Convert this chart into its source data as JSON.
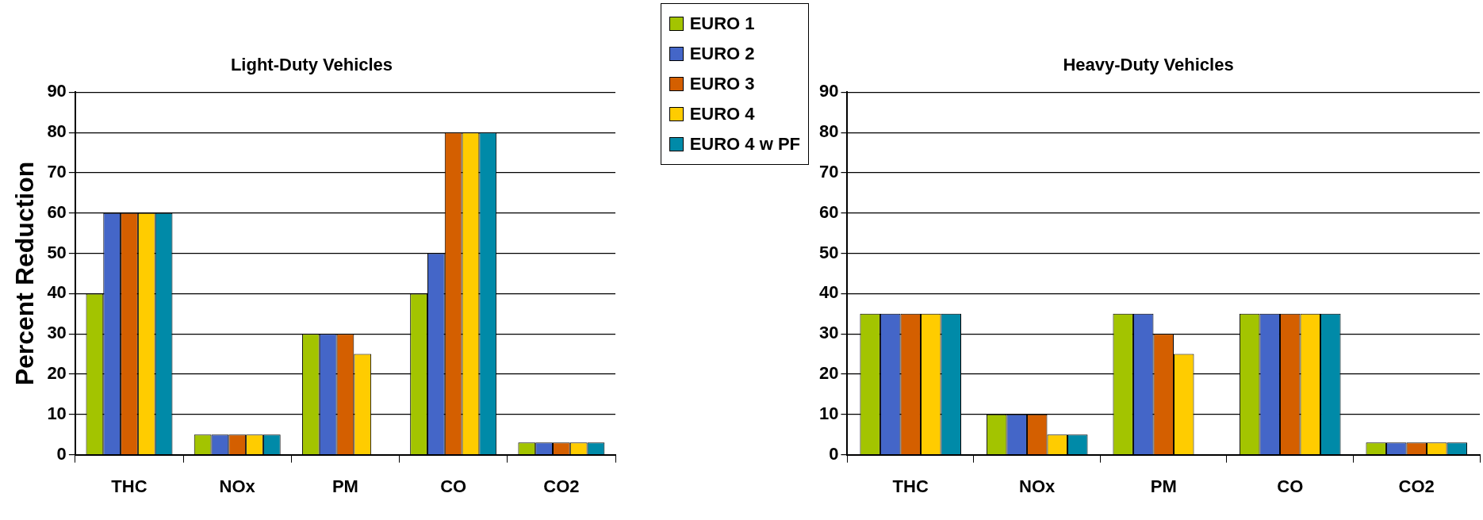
{
  "chart_data": [
    {
      "type": "bar",
      "title": "Light-Duty Vehicles",
      "ylabel": "Percent Reduction",
      "categories": [
        "THC",
        "NOx",
        "PM",
        "CO",
        "CO2"
      ],
      "series": [
        {
          "name": "EURO 1",
          "color": "#a3c400",
          "values": [
            40,
            5,
            30,
            40,
            3
          ]
        },
        {
          "name": "EURO 2",
          "color": "#4466c8",
          "values": [
            60,
            5,
            30,
            50,
            3
          ]
        },
        {
          "name": "EURO 3",
          "color": "#d45f00",
          "values": [
            60,
            5,
            30,
            80,
            3
          ]
        },
        {
          "name": "EURO 4",
          "color": "#ffcc00",
          "values": [
            60,
            5,
            25,
            80,
            3
          ]
        },
        {
          "name": "EURO 4 w PF",
          "color": "#008aa8",
          "values": [
            60,
            5,
            null,
            80,
            3
          ]
        }
      ],
      "ylim": [
        0,
        90
      ],
      "yticks": [
        0,
        10,
        20,
        30,
        40,
        50,
        60,
        70,
        80,
        90
      ],
      "grid": "y",
      "legend": "top right"
    },
    {
      "type": "bar",
      "title": "Heavy-Duty Vehicles",
      "categories": [
        "THC",
        "NOx",
        "PM",
        "CO",
        "CO2"
      ],
      "series": [
        {
          "color": "#a3c400",
          "values": [
            35,
            10,
            35,
            35,
            3
          ]
        },
        {
          "color": "#4466c8",
          "values": [
            35,
            10,
            35,
            35,
            3
          ]
        },
        {
          "color": "#d45f00",
          "values": [
            35,
            10,
            30,
            35,
            3
          ]
        },
        {
          "color": "#ffcc00",
          "values": [
            35,
            5,
            25,
            35,
            3
          ]
        },
        {
          "color": "#008aa8",
          "values": [
            35,
            5,
            null,
            35,
            3
          ]
        }
      ],
      "ylim": [
        0,
        90
      ],
      "yticks": [
        0,
        10,
        20,
        30,
        40,
        50,
        60,
        70,
        80,
        90
      ],
      "grid": "y"
    }
  ]
}
